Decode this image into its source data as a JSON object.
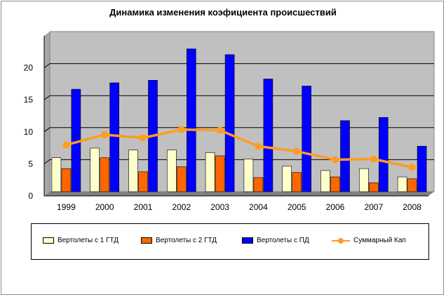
{
  "chart_data": {
    "type": "bar",
    "title": "Динамика изменения коэфициента происшествий",
    "xlabel": "",
    "ylabel": "",
    "categories": [
      "1999",
      "2000",
      "2001",
      "2002",
      "2003",
      "2004",
      "2005",
      "2006",
      "2007",
      "2008"
    ],
    "ylim": [
      0,
      25
    ],
    "yticks": [
      0,
      5,
      10,
      15,
      20
    ],
    "grid": true,
    "legend_position": "bottom",
    "series": [
      {
        "name": "Вертолеты с 1 ГТД",
        "kind": "bar",
        "color": "#ffffcc",
        "values": [
          5.3,
          6.8,
          6.5,
          6.5,
          6.1,
          5.1,
          4.0,
          3.3,
          3.6,
          2.3
        ]
      },
      {
        "name": "Вертолеты с 2 ГТД",
        "kind": "bar",
        "color": "#ff6600",
        "values": [
          3.6,
          5.3,
          3.1,
          3.9,
          5.6,
          2.2,
          3.0,
          2.3,
          1.4,
          2.0
        ]
      },
      {
        "name": "Вертолеты с ПД",
        "kind": "bar",
        "color": "#0000ff",
        "values": [
          16.0,
          17.0,
          17.4,
          22.3,
          21.4,
          17.6,
          16.5,
          11.1,
          11.6,
          7.1
        ]
      },
      {
        "name": "Суммарный Кап",
        "kind": "line",
        "color": "#ff9c21",
        "values": [
          7.3,
          8.9,
          8.4,
          9.7,
          9.6,
          7.1,
          6.3,
          5.0,
          5.1,
          3.8
        ]
      }
    ],
    "plot_background": "#c0c0c0"
  }
}
